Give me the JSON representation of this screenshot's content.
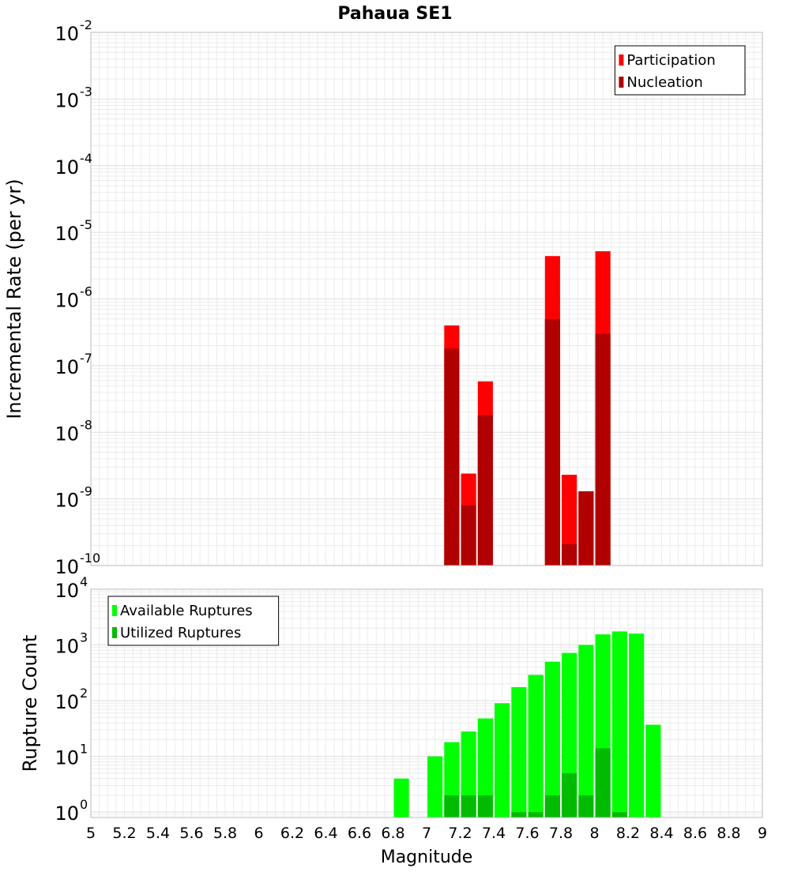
{
  "title": "Pahaua SE1",
  "xlabel": "Magnitude",
  "chart_data": [
    {
      "type": "bar",
      "title": "Pahaua SE1",
      "xlabel": "",
      "ylabel": "Incremental Rate (per yr)",
      "yscale": "log",
      "xlim": [
        5,
        9
      ],
      "ylim": [
        1e-10,
        0.01
      ],
      "y_tick_exponents": [
        -10,
        -9,
        -8,
        -7,
        -6,
        -5,
        -4,
        -3,
        -2
      ],
      "grid": true,
      "legend_position": "top-right",
      "bar_width": 0.09,
      "series": [
        {
          "name": "Participation",
          "color": "#ff0000",
          "points": [
            {
              "x": 7.15,
              "y": 4e-07
            },
            {
              "x": 7.25,
              "y": 2.4e-09
            },
            {
              "x": 7.35,
              "y": 5.8e-08
            },
            {
              "x": 7.75,
              "y": 4.4e-06
            },
            {
              "x": 7.85,
              "y": 2.3e-09
            },
            {
              "x": 7.95,
              "y": 1.3e-09
            },
            {
              "x": 8.05,
              "y": 5.2e-06
            }
          ]
        },
        {
          "name": "Nucleation",
          "color": "#b00000",
          "points": [
            {
              "x": 7.15,
              "y": 1.8e-07
            },
            {
              "x": 7.25,
              "y": 8e-10
            },
            {
              "x": 7.35,
              "y": 1.8e-08
            },
            {
              "x": 7.75,
              "y": 5e-07
            },
            {
              "x": 7.85,
              "y": 2.1e-10
            },
            {
              "x": 7.95,
              "y": 1.3e-09
            },
            {
              "x": 8.05,
              "y": 3e-07
            }
          ]
        }
      ]
    },
    {
      "type": "bar",
      "title": "",
      "xlabel": "Magnitude",
      "ylabel": "Rupture Count",
      "yscale": "log",
      "xlim": [
        5,
        9
      ],
      "ylim": [
        0.8,
        10000
      ],
      "y_tick_exponents": [
        0,
        1,
        2,
        3,
        4
      ],
      "x_ticks": [
        "5",
        "5.2",
        "5.4",
        "5.6",
        "5.8",
        "6",
        "6.2",
        "6.4",
        "6.6",
        "6.8",
        "7",
        "7.2",
        "7.4",
        "7.6",
        "7.8",
        "8",
        "8.2",
        "8.4",
        "8.6",
        "8.8",
        "9"
      ],
      "grid": true,
      "legend_position": "top-left",
      "bar_width": 0.09,
      "series": [
        {
          "name": "Available Ruptures",
          "color": "#00ff00",
          "points": [
            {
              "x": 6.85,
              "y": 4
            },
            {
              "x": 7.05,
              "y": 10
            },
            {
              "x": 7.15,
              "y": 18
            },
            {
              "x": 7.25,
              "y": 28
            },
            {
              "x": 7.35,
              "y": 48
            },
            {
              "x": 7.45,
              "y": 90
            },
            {
              "x": 7.55,
              "y": 175
            },
            {
              "x": 7.65,
              "y": 290
            },
            {
              "x": 7.75,
              "y": 500
            },
            {
              "x": 7.85,
              "y": 720
            },
            {
              "x": 7.95,
              "y": 1000
            },
            {
              "x": 8.05,
              "y": 1550
            },
            {
              "x": 8.15,
              "y": 1750
            },
            {
              "x": 8.25,
              "y": 1600
            },
            {
              "x": 8.35,
              "y": 37
            }
          ]
        },
        {
          "name": "Utilized Ruptures",
          "color": "#00bb00",
          "points": [
            {
              "x": 7.15,
              "y": 2
            },
            {
              "x": 7.25,
              "y": 2
            },
            {
              "x": 7.35,
              "y": 2
            },
            {
              "x": 7.55,
              "y": 1
            },
            {
              "x": 7.65,
              "y": 1
            },
            {
              "x": 7.75,
              "y": 2
            },
            {
              "x": 7.85,
              "y": 5
            },
            {
              "x": 7.95,
              "y": 2
            },
            {
              "x": 8.05,
              "y": 14
            },
            {
              "x": 8.15,
              "y": 1
            }
          ]
        }
      ]
    }
  ]
}
